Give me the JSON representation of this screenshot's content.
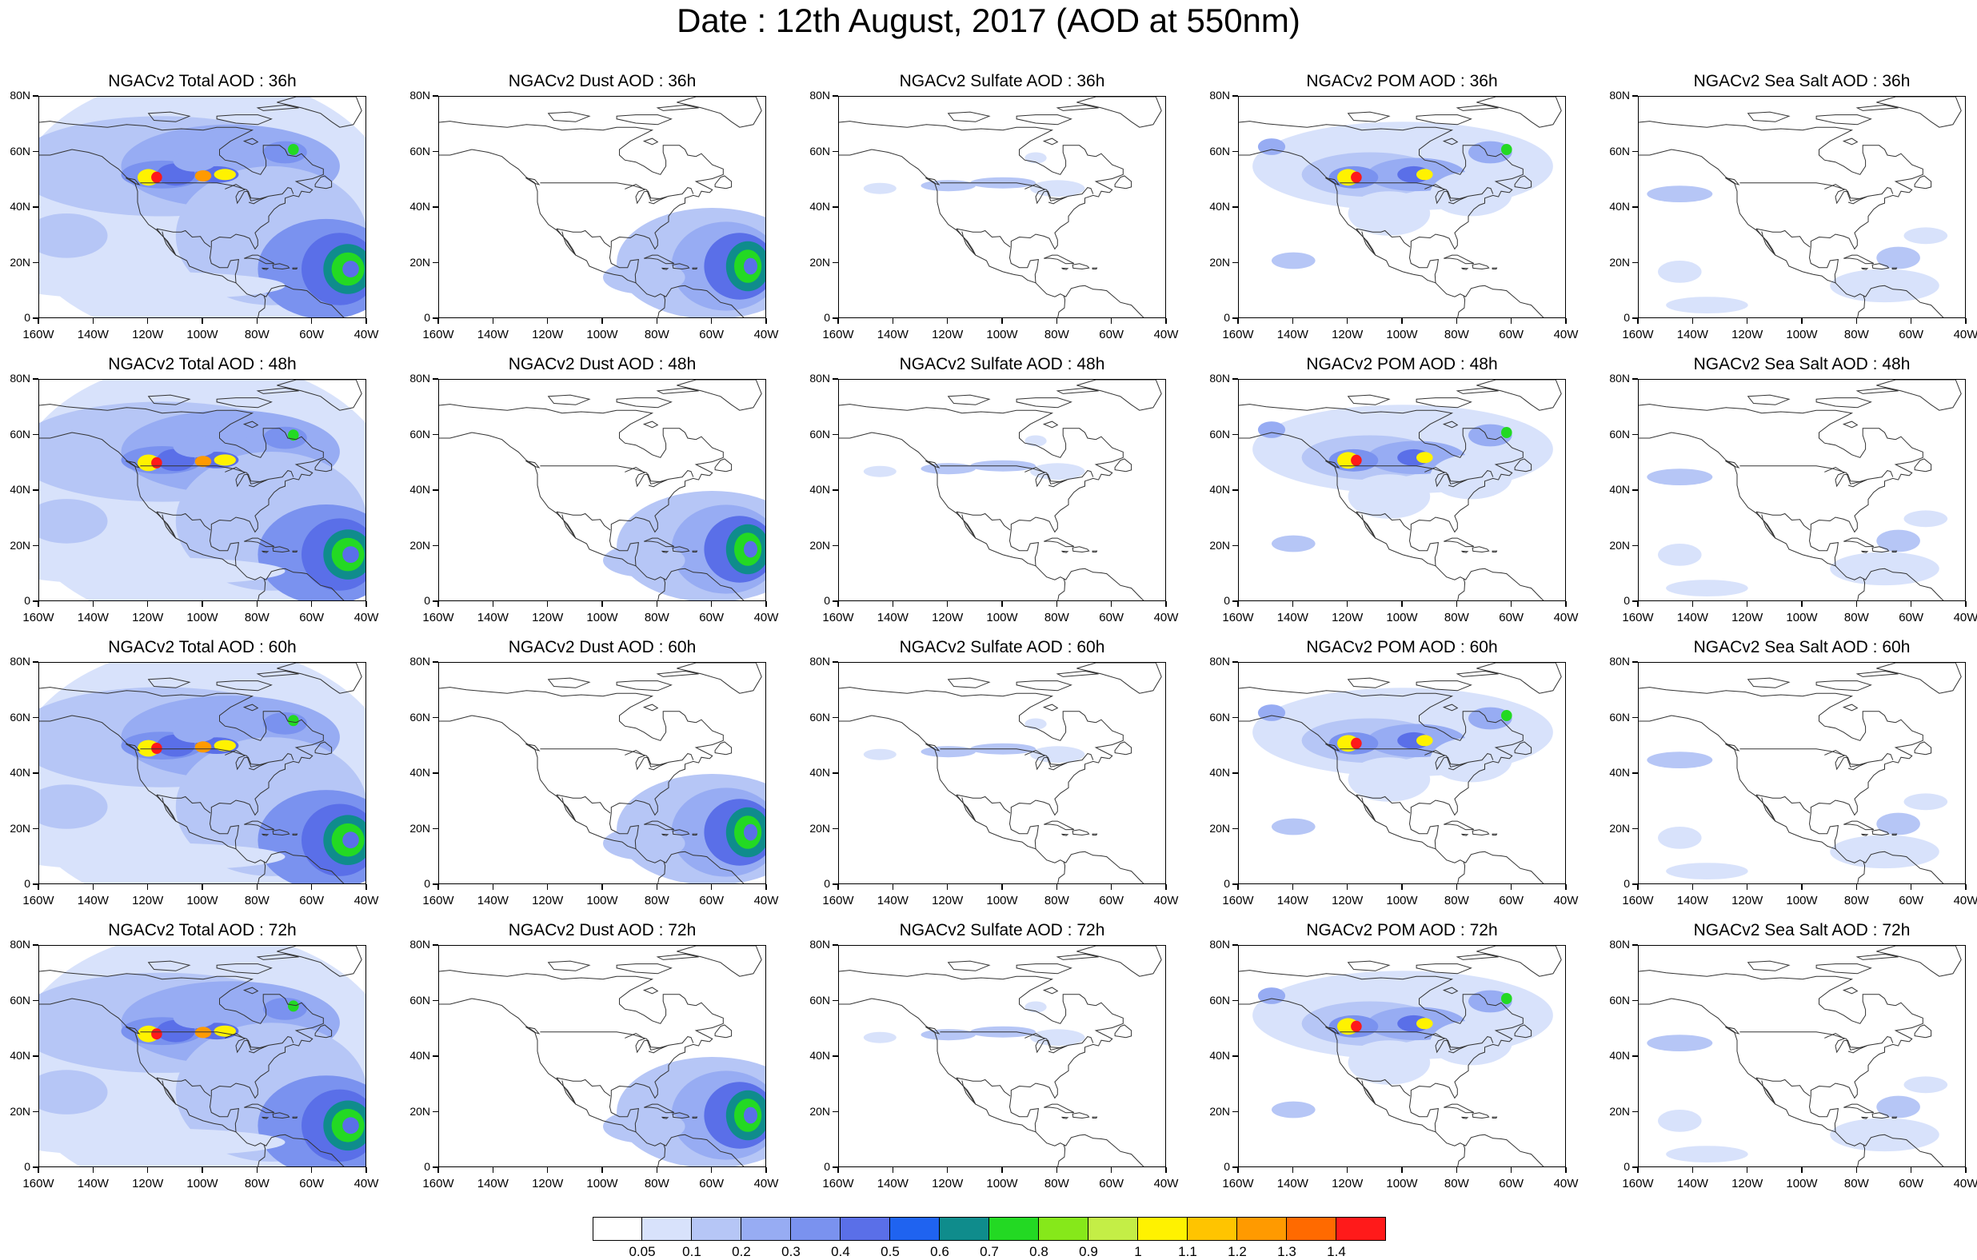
{
  "title": "Date : 12th August, 2017 (AOD at 550nm)",
  "panel_titles": [
    [
      "NGACv2 Total AOD : 36h",
      "NGACv2 Dust AOD : 36h",
      "NGACv2 Sulfate AOD : 36h",
      "NGACv2 POM AOD : 36h",
      "NGACv2 Sea Salt AOD : 36h"
    ],
    [
      "NGACv2 Total AOD : 48h",
      "NGACv2 Dust AOD : 48h",
      "NGACv2 Sulfate AOD : 48h",
      "NGACv2 POM AOD : 48h",
      "NGACv2 Sea Salt AOD : 48h"
    ],
    [
      "NGACv2 Total AOD : 60h",
      "NGACv2 Dust AOD : 60h",
      "NGACv2 Sulfate AOD : 60h",
      "NGACv2 POM AOD : 60h",
      "NGACv2 Sea Salt AOD : 60h"
    ],
    [
      "NGACv2 Total AOD : 72h",
      "NGACv2 Dust AOD : 72h",
      "NGACv2 Sulfate AOD : 72h",
      "NGACv2 POM AOD : 72h",
      "NGACv2 Sea Salt  AOD : 72h"
    ]
  ],
  "y_ticks": [
    "80N",
    "60N",
    "40N",
    "20N",
    "0"
  ],
  "x_ticks": [
    "160W",
    "140W",
    "120W",
    "100W",
    "80W",
    "60W",
    "40W"
  ],
  "colorbar": {
    "labels": [
      "0.05",
      "0.1",
      "0.2",
      "0.3",
      "0.4",
      "0.5",
      "0.6",
      "0.7",
      "0.8",
      "0.9",
      "1",
      "1.1",
      "1.2",
      "1.3",
      "1.4"
    ],
    "colors": [
      "#ffffff",
      "#d8e2fb",
      "#b6c6f6",
      "#97acf3",
      "#7a92ef",
      "#5a6fe8",
      "#1f63f0",
      "#0f8c8c",
      "#23d923",
      "#86e81a",
      "#c4ee46",
      "#fff200",
      "#ffc400",
      "#ff9a00",
      "#ff6a00",
      "#ff1a1a"
    ]
  },
  "map_colors": {
    "coast": "#333333",
    "light": "#d8e2fb",
    "pale": "#b6c6f6",
    "mid": "#97acf3",
    "strong": "#7a92ef",
    "deep": "#5a6fe8",
    "blue": "#1f63f0",
    "teal": "#0f8c8c",
    "green": "#23d923",
    "lime": "#86e81a",
    "yellow": "#fff200",
    "orange": "#ff9a00",
    "red": "#ff1a1a"
  }
}
